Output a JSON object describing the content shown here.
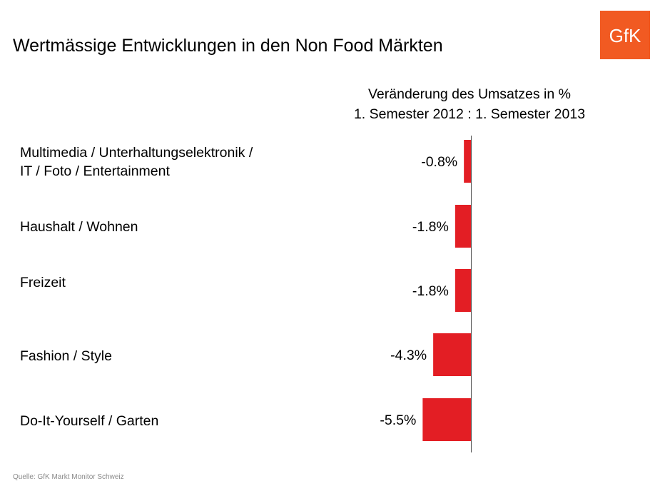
{
  "title": "Wertmässige Entwicklungen in den Non Food Märkten",
  "logo_text": "GfK",
  "subtitle_line1": "Veränderung des Umsatzes in %",
  "subtitle_line2": "1. Semester 2012 : 1. Semester 2013",
  "source": "Quelle: GfK Markt Monitor Schweiz",
  "colors": {
    "bar": "#e31e24",
    "logo": "#f15a22",
    "axis": "#555555"
  },
  "chart_data": {
    "type": "bar",
    "orientation": "horizontal",
    "categories": [
      [
        "Multimedia / Unterhaltungselektronik /",
        "IT / Foto / Entertainment"
      ],
      [
        "Haushalt / Wohnen"
      ],
      [
        "Freizeit"
      ],
      [
        "Fashion / Style"
      ],
      [
        "Do-It-Yourself / Garten"
      ]
    ],
    "values": [
      -0.8,
      -1.8,
      -1.8,
      -4.3,
      -5.5
    ],
    "data_labels": [
      "-0.8%",
      "-1.8%",
      "-1.8%",
      "-4.3%",
      "-5.5%"
    ],
    "grid": false
  }
}
